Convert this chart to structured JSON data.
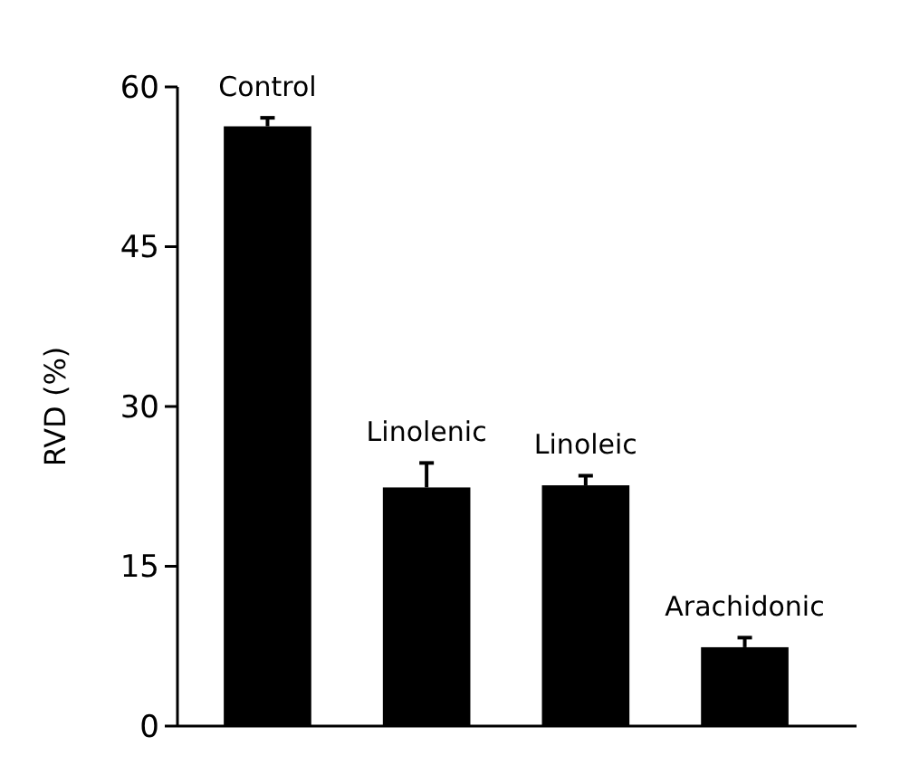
{
  "chart_data": {
    "type": "bar",
    "ylabel": "RVD (%)",
    "categories": [
      "Control",
      "Linolenic",
      "Linoleic",
      "Arachidonic"
    ],
    "values": [
      56.3,
      22.4,
      22.6,
      7.4
    ],
    "errors": [
      [
        56.3,
        57.1
      ],
      [
        22.4,
        24.7
      ],
      [
        22.6,
        23.5
      ],
      [
        7.4,
        8.3
      ]
    ],
    "color": "#000000",
    "ylim": [
      0,
      60
    ],
    "yticks": [
      0,
      15,
      30,
      45,
      60
    ],
    "grid": false
  }
}
